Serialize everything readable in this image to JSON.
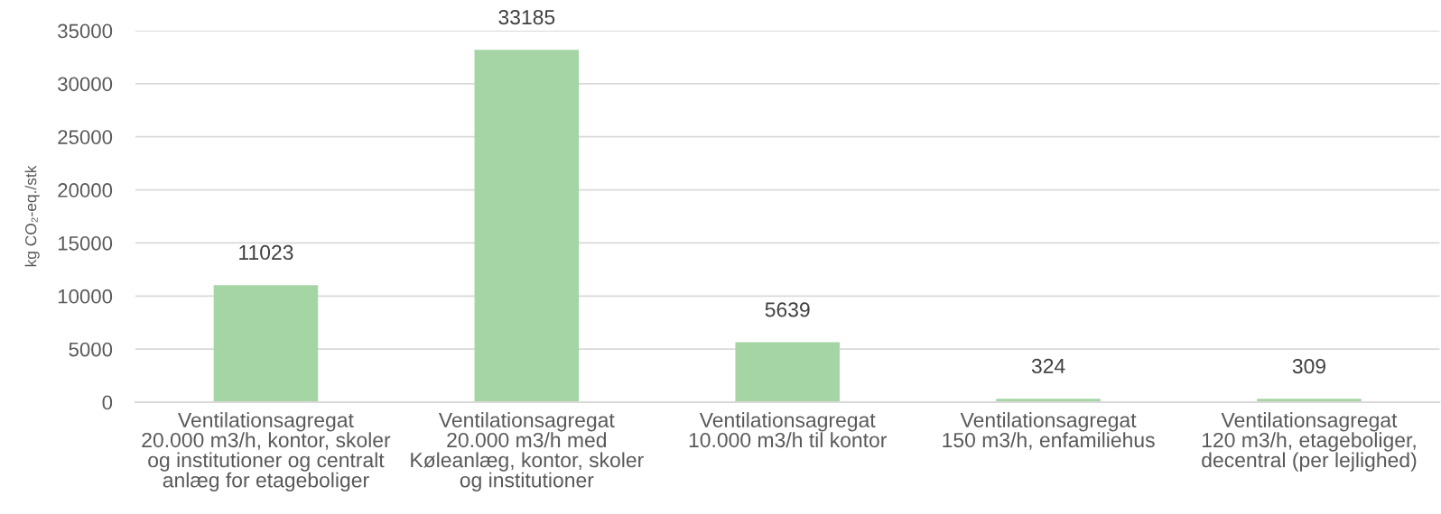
{
  "chart_data": {
    "type": "bar",
    "ylabel": "kg CO₂-eq./stk",
    "categories": [
      "Ventilationsagregat\n20.000 m3/h, kontor, skoler\nog institutioner og centralt\nanlæg for etageboliger",
      "Ventilationsagregat\n20.000 m3/h med\nKøleanlæg, kontor, skoler\nog institutioner",
      "Ventilationsagregat\n10.000 m3/h til kontor",
      "Ventilationsagregat\n150 m3/h, enfamiliehus",
      "Ventilationsagregat\n120 m3/h, etageboliger,\ndecentral (per lejlighed)"
    ],
    "values": [
      11023,
      33185,
      5639,
      324,
      309
    ],
    "color": "#a5d5a4",
    "ylim": [
      0,
      35000
    ],
    "yticks": [
      0,
      5000,
      10000,
      15000,
      20000,
      25000,
      30000,
      35000
    ],
    "grid": "y",
    "data_labels": true,
    "legend": false
  }
}
